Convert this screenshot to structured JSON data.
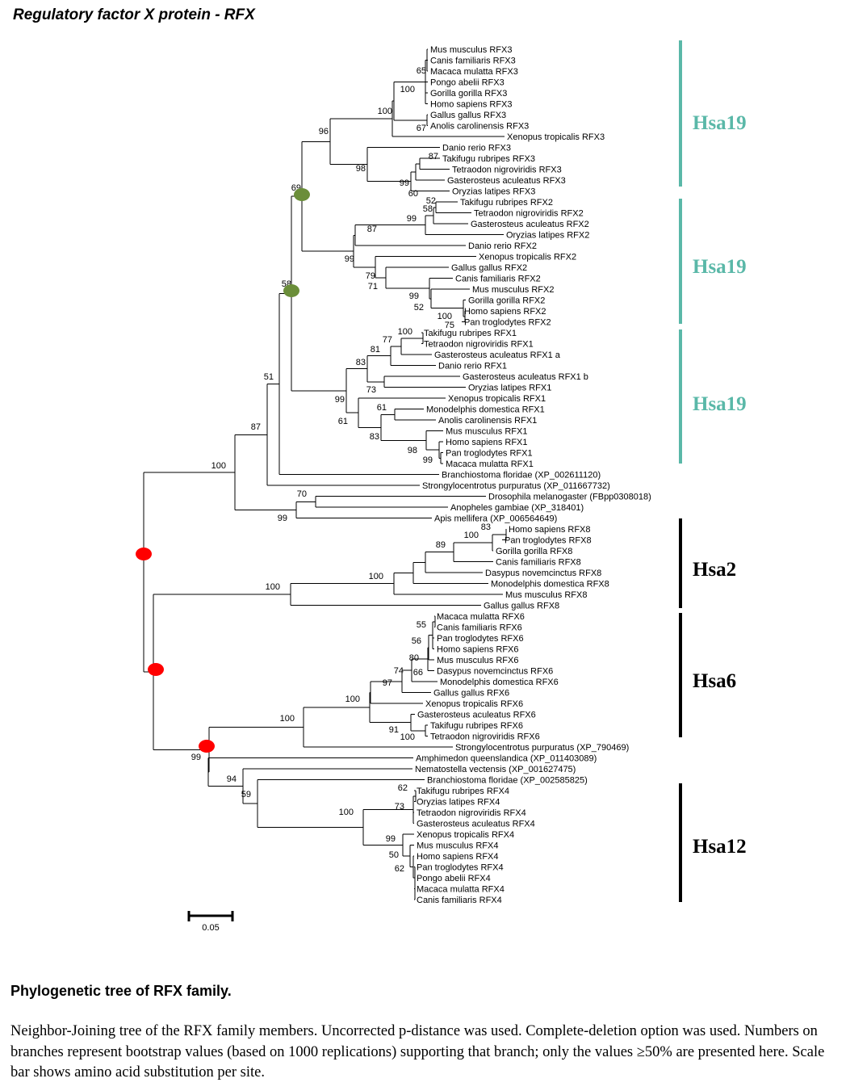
{
  "title": "Regulatory factor X protein - RFX",
  "caption_title": "Phylogenetic tree of RFX family.",
  "caption_text": "Neighbor-Joining tree of the RFX family members. Uncorrected p-distance was used. Complete-deletion option was used. Numbers on branches represent bootstrap values (based on 1000 replications) supporting that branch; only the values ≥50% are presented here. Scale bar shows amino acid substitution per site.",
  "scale_label": "0.05",
  "colors": {
    "teal": "#5ab8a8",
    "black": "#000000",
    "green_marker": "#6b8e3a",
    "red_marker": "#ff0000"
  },
  "groups": [
    {
      "label": "Hsa19",
      "color": "#5ab8a8"
    },
    {
      "label": "Hsa19",
      "color": "#5ab8a8"
    },
    {
      "label": "Hsa19",
      "color": "#5ab8a8"
    },
    {
      "label": "Hsa2",
      "color": "#000000"
    },
    {
      "label": "Hsa6",
      "color": "#000000"
    },
    {
      "label": "Hsa12",
      "color": "#000000"
    }
  ],
  "taxa": [
    "Mus musculus RFX3",
    "Canis familiaris RFX3",
    "Macaca mulatta RFX3",
    "Pongo abelii RFX3",
    "Gorilla gorilla RFX3",
    "Homo sapiens RFX3",
    "Gallus gallus RFX3",
    "Anolis carolinensis RFX3",
    "Xenopus tropicalis RFX3",
    "Danio rerio RFX3",
    "Takifugu rubripes RFX3",
    "Tetraodon nigroviridis RFX3",
    "Gasterosteus aculeatus RFX3",
    "Oryzias latipes RFX3",
    "Takifugu rubripes RFX2",
    "Tetraodon nigroviridis RFX2",
    "Gasterosteus aculeatus RFX2",
    "Oryzias latipes RFX2",
    "Danio rerio RFX2",
    "Xenopus tropicalis RFX2",
    "Gallus gallus RFX2",
    "Canis familiaris RFX2",
    "Mus musculus RFX2",
    "Gorilla gorilla RFX2",
    "Homo sapiens RFX2",
    "Pan troglodytes RFX2",
    "Takifugu rubripes RFX1",
    "Tetraodon nigroviridis RFX1",
    "Gasterosteus aculeatus RFX1 a",
    "Danio rerio RFX1",
    "Gasterosteus aculeatus RFX1 b",
    "Oryzias latipes RFX1",
    "Xenopus tropicalis RFX1",
    "Monodelphis domestica RFX1",
    "Anolis carolinensis RFX1",
    "Mus musculus RFX1",
    "Homo sapiens RFX1",
    "Pan troglodytes RFX1",
    "Macaca mulatta RFX1",
    "Branchiostoma floridae (XP_002611120)",
    "Strongylocentrotus purpuratus (XP_011667732)",
    "Drosophila melanogaster (FBpp0308018)",
    "Anopheles gambiae (XP_318401)",
    "Apis mellifera (XP_006564649)",
    "Homo sapiens RFX8",
    "Pan troglodytes RFX8",
    "Gorilla gorilla RFX8",
    "Canis familiaris RFX8",
    "Dasypus novemcinctus RFX8",
    "Monodelphis domestica RFX8",
    "Mus musculus RFX8",
    "Gallus gallus RFX8",
    "Macaca mulatta RFX6",
    "Canis familiaris RFX6",
    "Pan troglodytes RFX6",
    "Homo sapiens RFX6",
    "Mus musculus RFX6",
    "Dasypus novemcinctus RFX6",
    "Monodelphis domestica RFX6",
    "Gallus gallus RFX6",
    "Xenopus tropicalis RFX6",
    "Gasterosteus aculeatus RFX6",
    "Takifugu rubripes RFX6",
    "Tetraodon nigroviridis RFX6",
    "Strongylocentrotus purpuratus (XP_790469)",
    "Amphimedon queenslandica (XP_011403089)",
    "Nematostella vectensis (XP_001627475)",
    "Branchiostoma floridae (XP_002585825)",
    "Takifugu rubripes RFX4",
    "Oryzias latipes RFX4",
    "Tetraodon nigroviridis RFX4",
    "Gasterosteus aculeatus RFX4",
    "Xenopus tropicalis RFX4",
    "Mus musculus RFX4",
    "Homo sapiens RFX4",
    "Pan troglodytes RFX4",
    "Pongo abelii RFX4",
    "Macaca mulatta RFX4",
    "Canis familiaris RFX4"
  ],
  "bootstrap_values": [
    "65",
    "100",
    "100",
    "67",
    "96",
    "87",
    "98",
    "99",
    "60",
    "69",
    "52",
    "58",
    "99",
    "87",
    "99",
    "79",
    "71",
    "99",
    "52",
    "100",
    "75",
    "58",
    "100",
    "77",
    "81",
    "83",
    "73",
    "99",
    "61",
    "61",
    "83",
    "98",
    "99",
    "51",
    "87",
    "100",
    "70",
    "99",
    "83",
    "100",
    "89",
    "100",
    "100",
    "55",
    "56",
    "80",
    "74",
    "66",
    "97",
    "100",
    "100",
    "91",
    "100",
    "99",
    "94",
    "59",
    "62",
    "73",
    "100",
    "99",
    "50",
    "62"
  ]
}
